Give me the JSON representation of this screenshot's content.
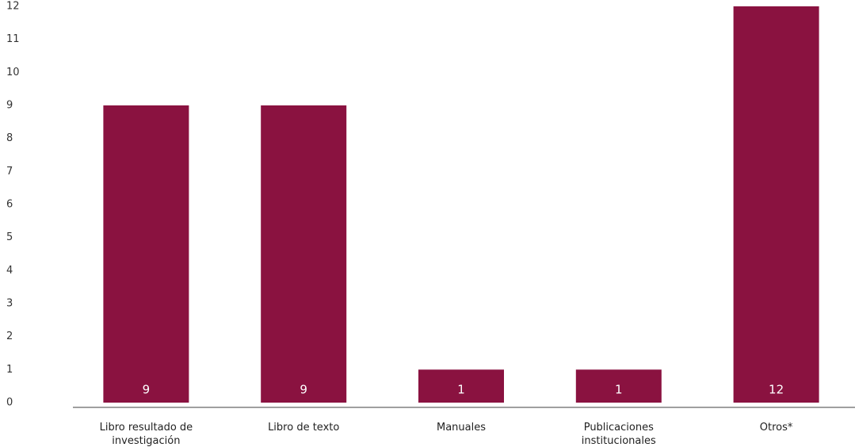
{
  "chart_data": {
    "type": "bar",
    "categories": [
      "Libro resultado de investigación",
      "Libro de texto",
      "Manuales",
      "Publicaciones institucionales",
      "Otros*"
    ],
    "values": [
      9,
      9,
      1,
      1,
      12
    ],
    "color": "#8a1240",
    "ylim": [
      0,
      12
    ],
    "yticks": [
      0,
      1,
      2,
      3,
      4,
      5,
      6,
      7,
      8,
      9,
      10,
      11,
      12
    ],
    "grid": false
  }
}
